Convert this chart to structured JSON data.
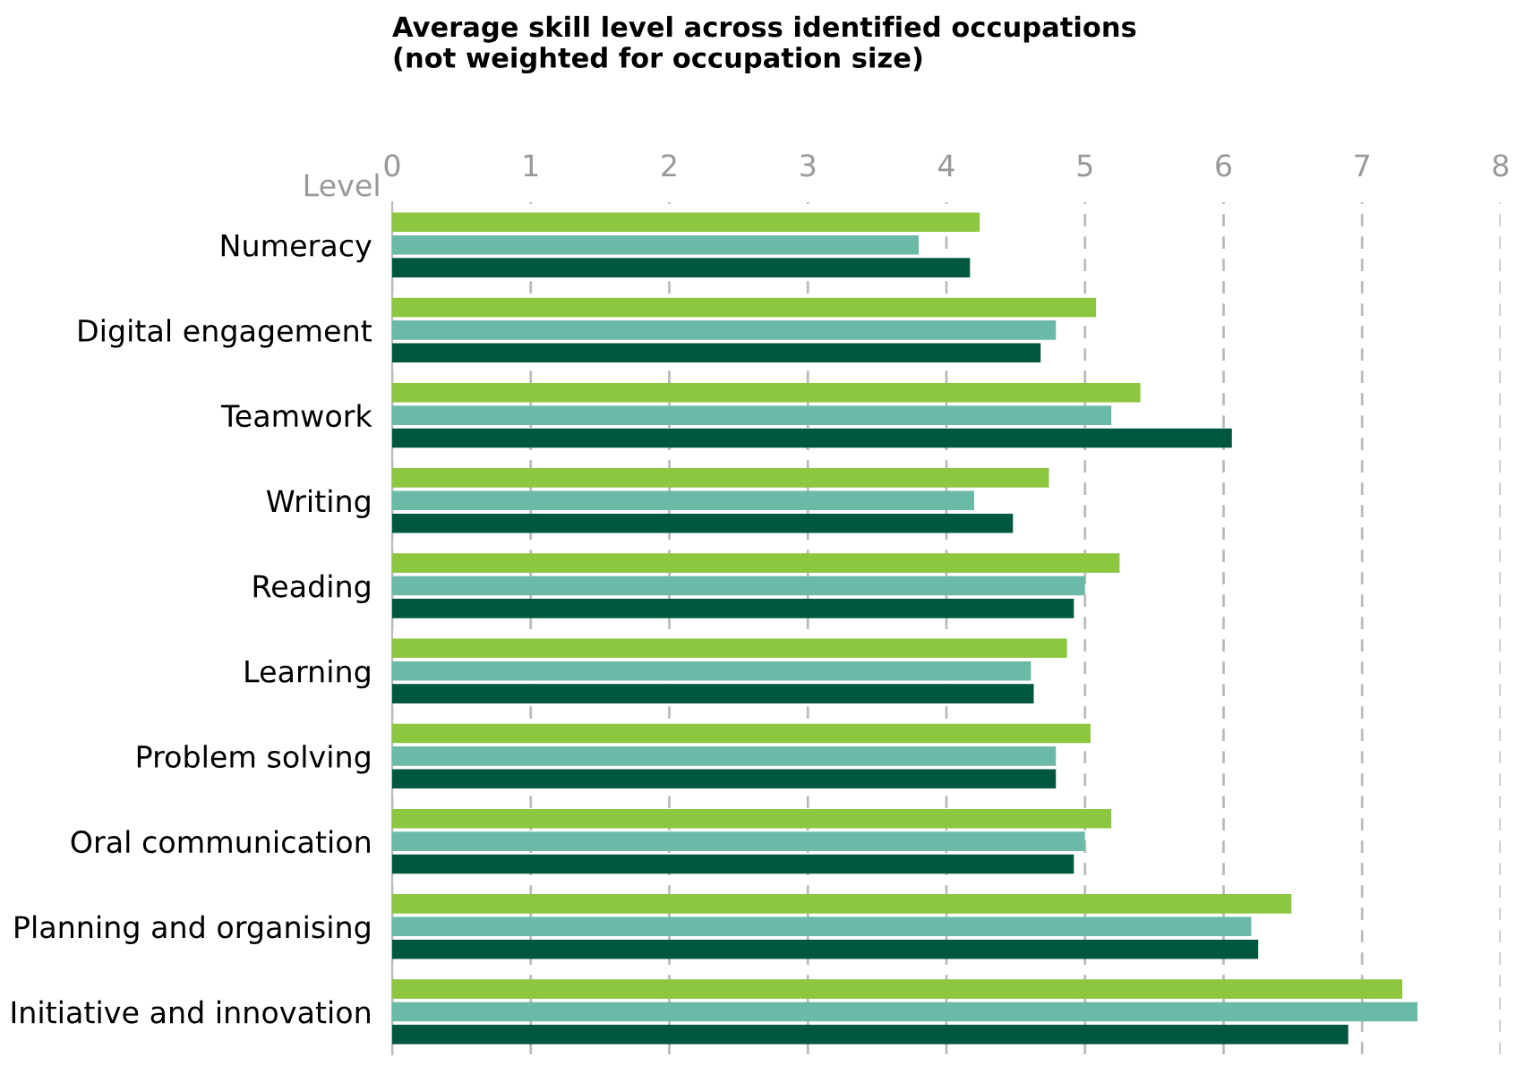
{
  "chart_data": {
    "type": "bar",
    "orientation": "horizontal",
    "title": "Average skill level across identified occupations\n(not weighted for occupation size)",
    "xlabel": "Level",
    "categories": [
      "Numeracy",
      "Digital engagement",
      "Teamwork",
      "Writing",
      "Reading",
      "Learning",
      "Problem solving",
      "Oral communication",
      "Planning and organising",
      "Initiative and innovation"
    ],
    "series": [
      {
        "color": "#8dc63f",
        "values": [
          4.24,
          5.08,
          5.4,
          4.74,
          5.25,
          4.87,
          5.04,
          5.19,
          6.49,
          7.29
        ]
      },
      {
        "color": "#6bbaa7",
        "values": [
          3.8,
          4.79,
          5.19,
          4.2,
          5.0,
          4.61,
          4.79,
          5.0,
          6.2,
          7.4
        ]
      },
      {
        "color": "#00573f",
        "values": [
          4.17,
          4.68,
          6.06,
          4.48,
          4.92,
          4.63,
          4.79,
          4.92,
          6.25,
          6.9
        ]
      }
    ],
    "xlim": [
      0,
      8
    ],
    "xticks": [
      0,
      1,
      2,
      3,
      4,
      5,
      6,
      7,
      8
    ],
    "grid": "x",
    "legend": false
  }
}
